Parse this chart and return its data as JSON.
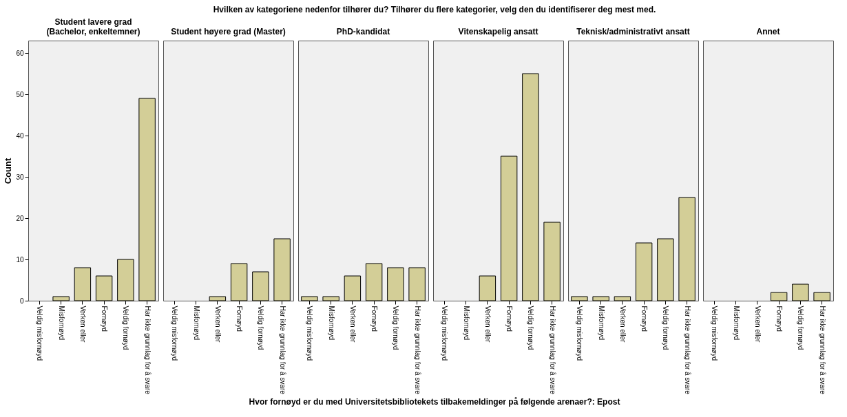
{
  "chart_data": [
    {
      "type": "bar",
      "title": "Student lavere grad\n(Bachelor, enkeltemner)",
      "annotations": [
        "Hvilken av kategoriene nedenfor tilhører du? Tilhører du flere kategorier, velg den du identifiserer deg mest med.",
        "Hvor fornøyd er du med Universitetsbibliotekets tilbakemeldinger på følgende arenaer?: Epost"
      ],
      "ylabel": "Count",
      "categories": [
        "Veldig misfornøyd",
        "Misfornøyd",
        "Verken eller",
        "Fornøyd",
        "Veldig fornøyd",
        "Har ikke grunnlag for å svare"
      ],
      "values": [
        0,
        1,
        8,
        6,
        10,
        49
      ],
      "color": "#d3ce97",
      "ylim": [
        0,
        63
      ],
      "yticks": [
        0,
        10,
        20,
        30,
        40,
        50,
        60
      ]
    },
    {
      "type": "bar",
      "title": "Student høyere grad (Master)",
      "categories": [
        "Veldig misfornøyd",
        "Misfornøyd",
        "Verken eller",
        "Fornøyd",
        "Veldig fornøyd",
        "Har ikke grunnlag for å svare"
      ],
      "values": [
        0,
        0,
        1,
        9,
        7,
        15
      ],
      "color": "#d3ce97",
      "ylim": [
        0,
        63
      ],
      "yticks": [
        0,
        10,
        20,
        30,
        40,
        50,
        60
      ],
      "tick_labels": "x"
    },
    {
      "type": "bar",
      "title": "PhD-kandidat",
      "categories": [
        "Veldig misfornøyd",
        "Misfornøyd",
        "Verken eller",
        "Fornøyd",
        "Veldig fornøyd",
        "Har ikke grunnlag for å svare"
      ],
      "values": [
        1,
        1,
        6,
        9,
        8,
        8
      ],
      "color": "#d3ce97",
      "ylim": [
        0,
        63
      ],
      "yticks": [
        0,
        10,
        20,
        30,
        40,
        50,
        60
      ],
      "tick_labels": "x"
    },
    {
      "type": "bar",
      "title": "Vitenskapelig ansatt",
      "categories": [
        "Veldig misfornøyd",
        "Misfornøyd",
        "Verken eller",
        "Fornøyd",
        "Veldig fornøyd",
        "Har ikke grunnlag for å svare"
      ],
      "values": [
        0,
        0,
        6,
        35,
        55,
        19
      ],
      "color": "#d3ce97",
      "ylim": [
        0,
        63
      ],
      "yticks": [
        0,
        10,
        20,
        30,
        40,
        50,
        60
      ],
      "tick_labels": "x"
    },
    {
      "type": "bar",
      "title": "Teknisk/administrativt ansatt",
      "categories": [
        "Veldig misfornøyd",
        "Misfornøyd",
        "Verken eller",
        "Fornøyd",
        "Veldig fornøyd",
        "Har ikke grunnlag for å svare"
      ],
      "values": [
        1,
        1,
        1,
        14,
        15,
        25
      ],
      "color": "#d3ce97",
      "ylim": [
        0,
        63
      ],
      "yticks": [
        0,
        10,
        20,
        30,
        40,
        50,
        60
      ],
      "tick_labels": "x"
    },
    {
      "type": "bar",
      "title": "Annet",
      "categories": [
        "Veldig misfornøyd",
        "Misfornøyd",
        "Verken eller",
        "Fornøyd",
        "Veldig fornøyd",
        "Har ikke grunnlag for å svare"
      ],
      "values": [
        0,
        0,
        0,
        2,
        4,
        2
      ],
      "color": "#d3ce97",
      "ylim": [
        0,
        63
      ],
      "yticks": [
        0,
        10,
        20,
        30,
        40,
        50,
        60
      ],
      "tick_labels": "x"
    }
  ]
}
